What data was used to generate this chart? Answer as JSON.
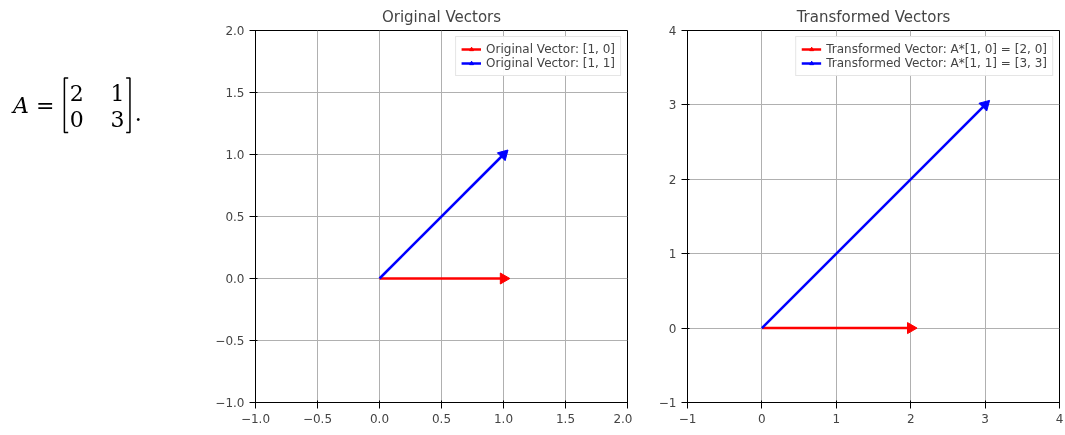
{
  "chart_data": [
    {
      "type": "other",
      "annotations": [
        "A =",
        "2",
        "1",
        "0",
        "3",
        "."
      ]
    },
    {
      "type": "line",
      "title": "Original Vectors",
      "grid": true,
      "legend": "top right",
      "marker": "triangle",
      "line_style": "solid",
      "xlim": [
        -1.0,
        2.0
      ],
      "ylim": [
        -1.0,
        2.0
      ],
      "xticks": [
        {
          "value": -1.0,
          "label": "−1.0"
        },
        {
          "value": -0.5,
          "label": "−0.5"
        },
        {
          "value": 0.0,
          "label": "0.0"
        },
        {
          "value": 0.5,
          "label": "0.5"
        },
        {
          "value": 1.0,
          "label": "1.0"
        },
        {
          "value": 1.5,
          "label": "1.5"
        },
        {
          "value": 2.0,
          "label": "2.0"
        }
      ],
      "yticks": [
        {
          "value": -1.0,
          "label": "−1.0"
        },
        {
          "value": -0.5,
          "label": "−0.5"
        },
        {
          "value": 0.0,
          "label": "0.0"
        },
        {
          "value": 0.5,
          "label": "0.5"
        },
        {
          "value": 1.0,
          "label": "1.0"
        },
        {
          "value": 1.5,
          "label": "1.5"
        },
        {
          "value": 2.0,
          "label": "2.0"
        }
      ],
      "series": [
        {
          "name": "Original Vector: [1, 0]",
          "color": "#ff0000",
          "x": [
            0,
            1
          ],
          "values": [
            0,
            0
          ]
        },
        {
          "name": "Original Vector: [1, 1]",
          "color": "#0000ff",
          "x": [
            0,
            1
          ],
          "values": [
            0,
            1
          ]
        }
      ]
    },
    {
      "type": "line",
      "title": "Transformed Vectors",
      "grid": true,
      "legend": "top right",
      "marker": "triangle",
      "line_style": "solid",
      "xlim": [
        -1,
        4
      ],
      "ylim": [
        -1,
        4
      ],
      "xticks": [
        {
          "value": -1,
          "label": "−1"
        },
        0,
        1,
        2,
        3,
        4
      ],
      "yticks": [
        {
          "value": -1,
          "label": "−1"
        },
        0,
        1,
        2,
        3,
        4
      ],
      "series": [
        {
          "name": "Transformed Vector: A*[1, 0] = [2, 0]",
          "color": "#ff0000",
          "x": [
            0,
            2
          ],
          "values": [
            0,
            0
          ]
        },
        {
          "name": "Transformed Vector: A*[1, 1] = [3, 3]",
          "color": "#0000ff",
          "x": [
            0,
            3
          ],
          "values": [
            0,
            3
          ]
        }
      ]
    }
  ]
}
